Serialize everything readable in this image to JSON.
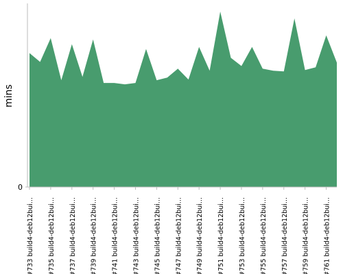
{
  "chart_data": {
    "type": "area",
    "y_label": "mins",
    "color": "#489c6e",
    "categories": [
      "#733 build4-deb12bui...",
      null,
      "#735 build4-deb12bui...",
      null,
      "#737 build4-deb12bui...",
      null,
      "#739 build4-deb12bui...",
      null,
      "#741 build4-deb12bui...",
      null,
      "#743 build4-deb12bui...",
      null,
      "#745 build4-deb12bui...",
      null,
      "#747 build4-deb12bui...",
      null,
      "#749 build4-deb12bui...",
      null,
      "#751 build4-deb12bui...",
      null,
      "#753 build4-deb12bui...",
      null,
      "#755 build4-deb12bui...",
      null,
      "#757 build4-deb12bui...",
      null,
      "#759 build4-deb12bui...",
      null,
      "#761 build4-deb12bui...",
      null
    ],
    "values": [
      19.7,
      18.4,
      21.9,
      15.7,
      21.0,
      16.2,
      21.7,
      15.3,
      15.3,
      15.1,
      15.3,
      20.3,
      15.7,
      16.1,
      17.4,
      15.8,
      20.6,
      17.1,
      25.8,
      19.0,
      17.8,
      20.6,
      17.4,
      17.1,
      17.0,
      24.8,
      17.2,
      17.6,
      22.3,
      18.3
    ],
    "ylim": [
      0,
      27
    ],
    "yticks": [
      0
    ]
  }
}
